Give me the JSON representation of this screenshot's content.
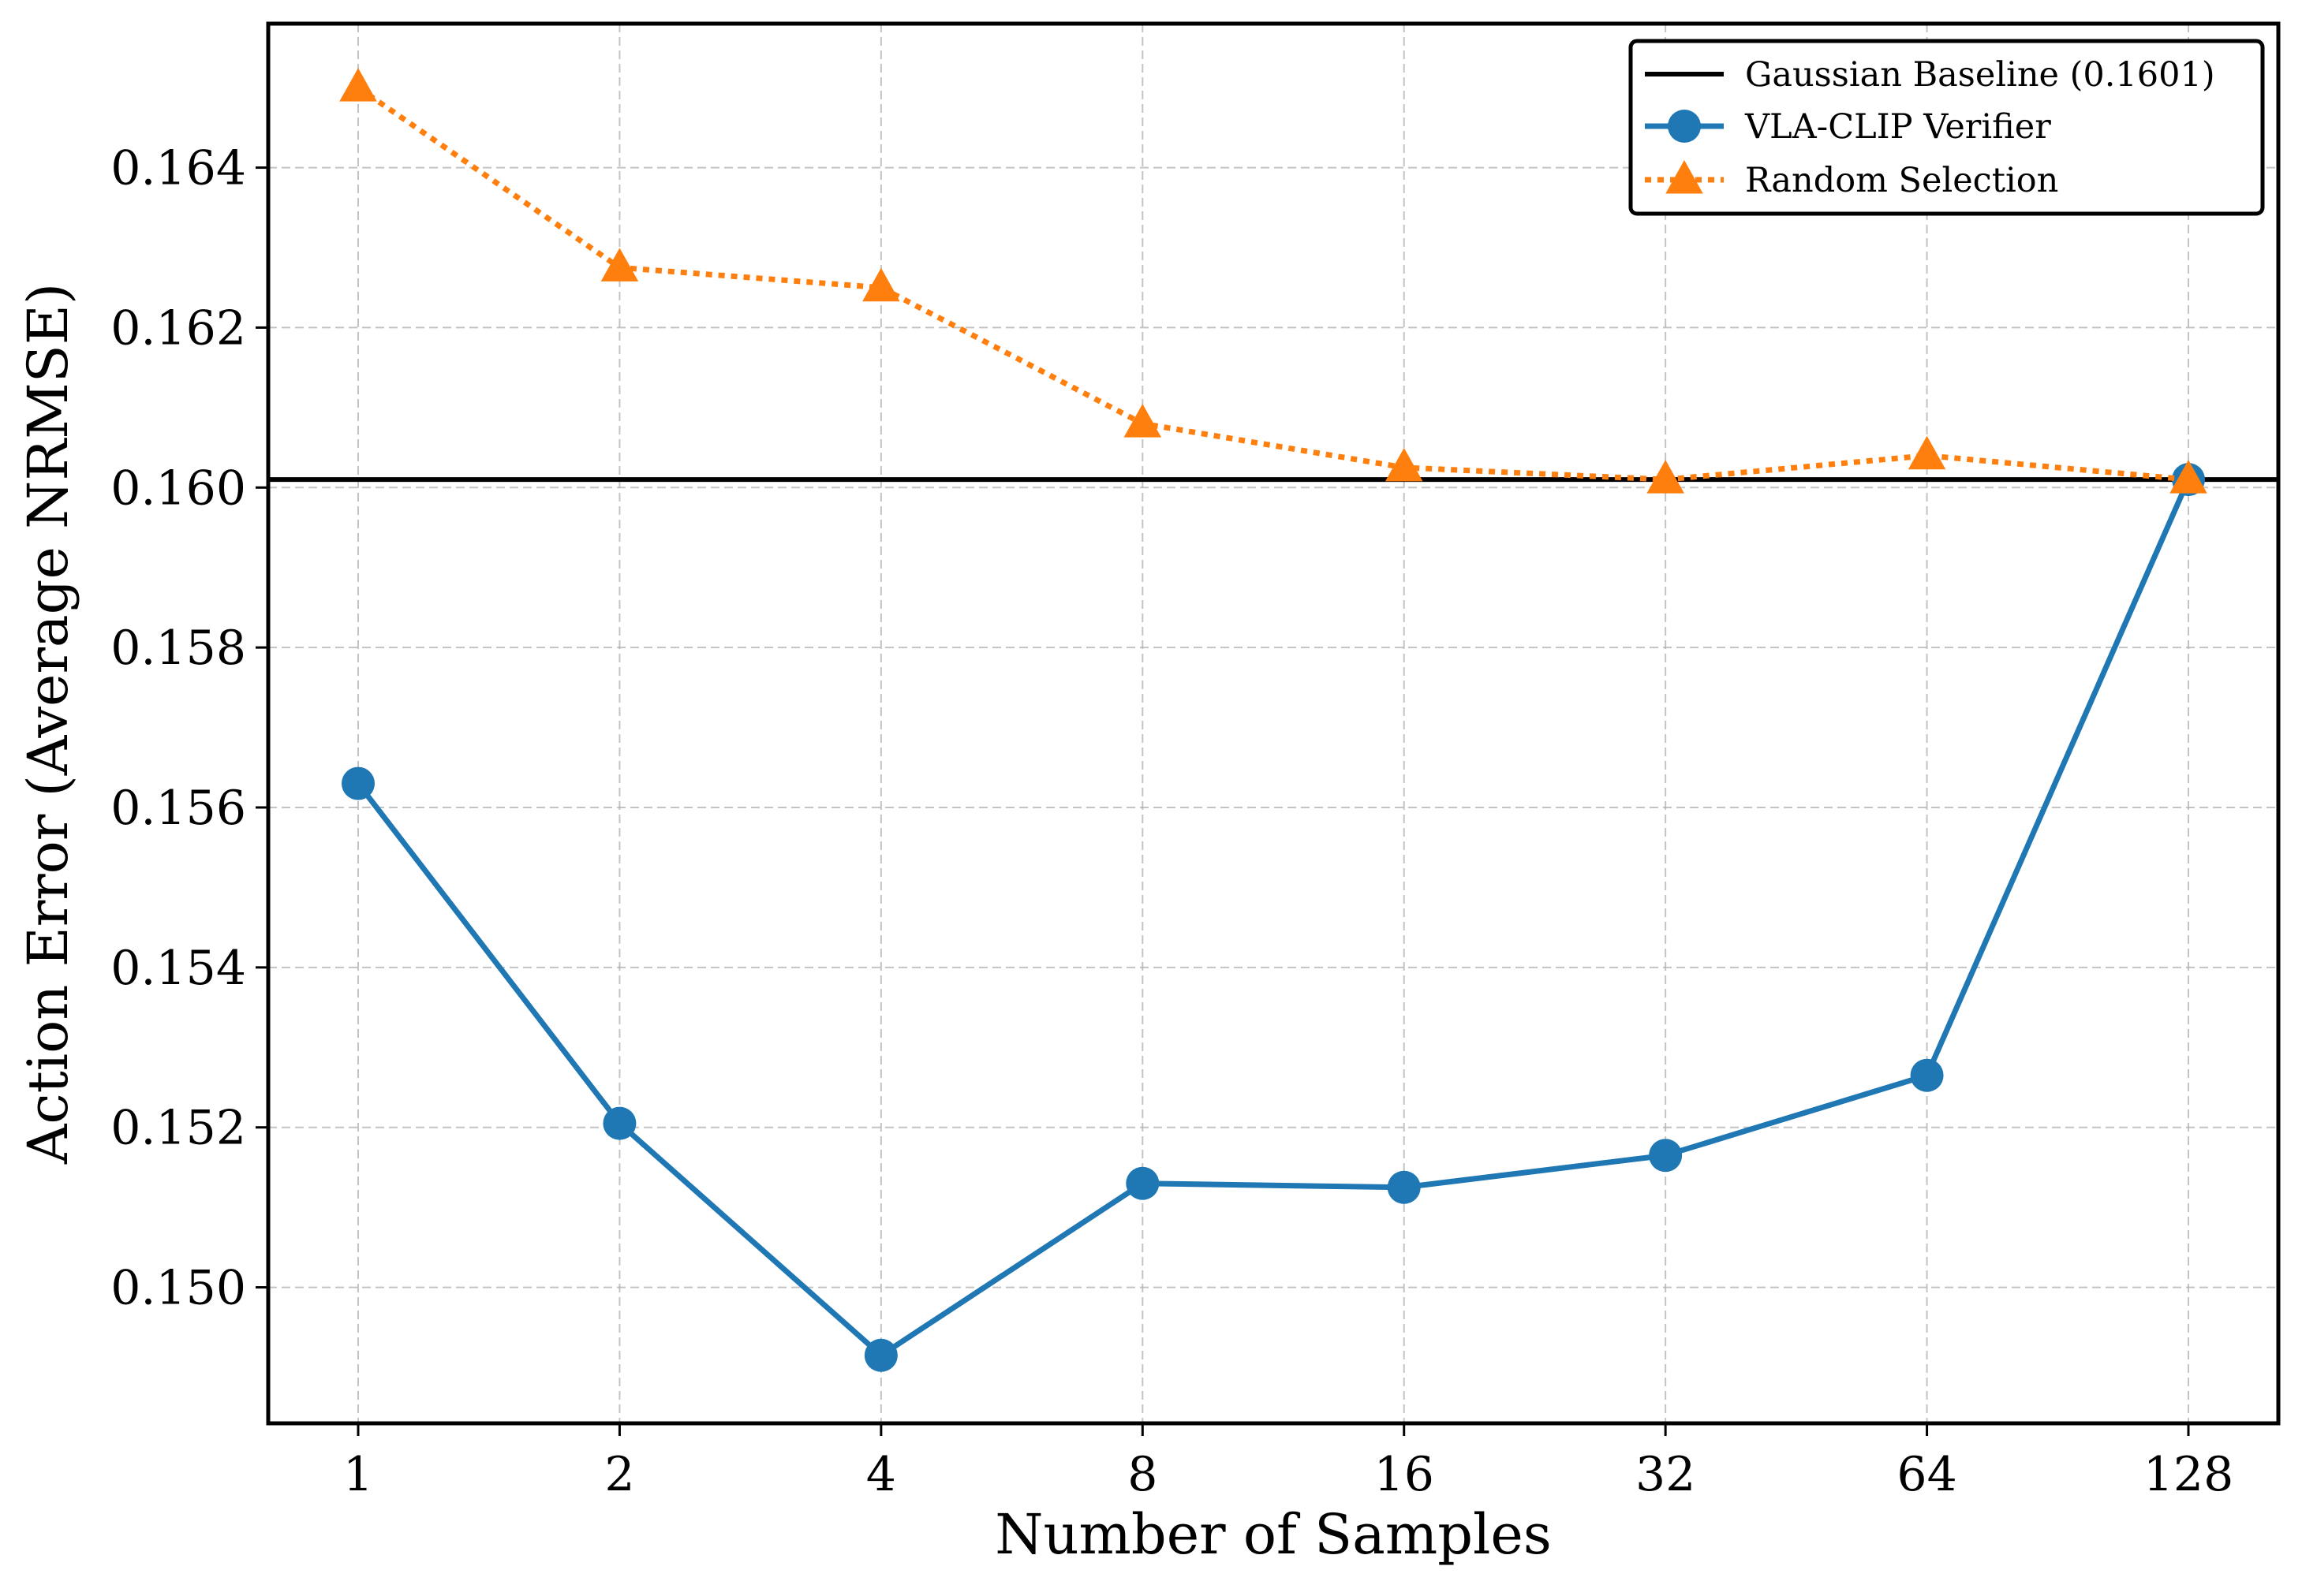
{
  "chart_data": {
    "type": "line",
    "xlabel": "Number of Samples",
    "ylabel": "Action Error (Average NRMSE)",
    "x_scale": "log2",
    "categories": [
      "1",
      "2",
      "4",
      "8",
      "16",
      "32",
      "64",
      "128"
    ],
    "x": [
      1,
      2,
      4,
      8,
      16,
      32,
      64,
      128
    ],
    "ylim": [
      0.1483,
      0.1658
    ],
    "yticks": [
      0.15,
      0.152,
      0.154,
      0.156,
      0.158,
      0.16,
      0.162,
      0.164
    ],
    "ytick_labels": [
      "0.150",
      "0.152",
      "0.154",
      "0.156",
      "0.158",
      "0.160",
      "0.162",
      "0.164"
    ],
    "grid": true,
    "legend_position": "top-right",
    "baseline": {
      "name": "Gaussian Baseline (0.1601)",
      "value": 0.1601,
      "color": "#000000"
    },
    "series": [
      {
        "name": "VLA-CLIP Verifier",
        "marker": "circle",
        "line_style": "solid",
        "color": "#1f77b4",
        "values": [
          0.1563,
          0.15205,
          0.14915,
          0.1513,
          0.15125,
          0.15165,
          0.15265,
          0.1601
        ]
      },
      {
        "name": "Random Selection",
        "marker": "triangle",
        "line_style": "dotted",
        "color": "#ff7f0e",
        "values": [
          0.165,
          0.16275,
          0.1625,
          0.1608,
          0.16025,
          0.1601,
          0.1604,
          0.1601
        ]
      }
    ]
  }
}
